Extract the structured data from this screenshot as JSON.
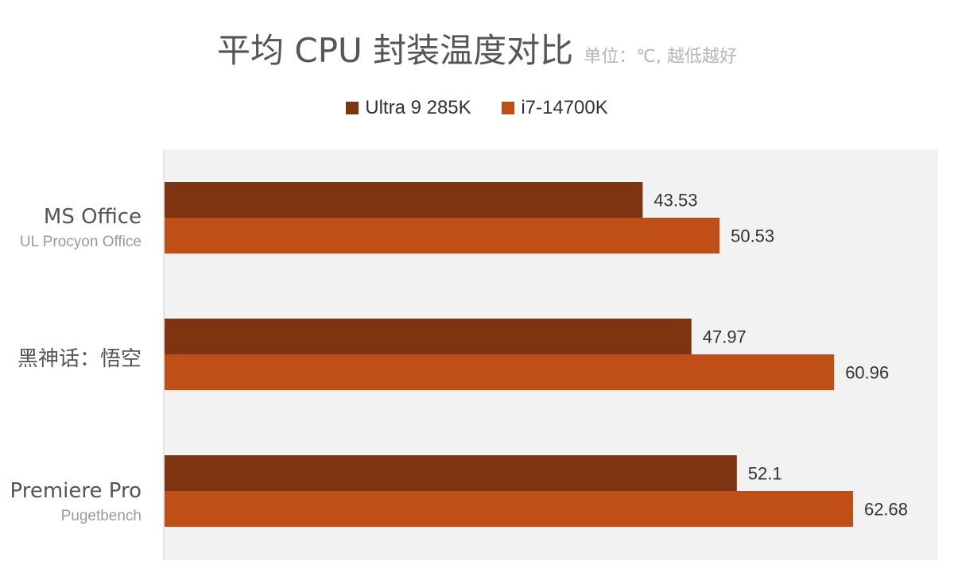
{
  "chart_data": {
    "type": "bar",
    "orientation": "horizontal",
    "title": "平均 CPU 封装温度对比",
    "subtitle": "单位：℃, 越低越好",
    "legend_position": "top",
    "grid": false,
    "xlim": [
      0,
      70.5
    ],
    "categories": [
      {
        "name": "MS Office",
        "sub": "UL Procyon Office"
      },
      {
        "name": "黑神话：悟空",
        "sub": ""
      },
      {
        "name": "Premiere Pro",
        "sub": "Pugetbench"
      }
    ],
    "series": [
      {
        "name": "Ultra 9 285K",
        "color": "#7E3410",
        "values": [
          43.53,
          47.97,
          52.1
        ],
        "labels": [
          "43.53",
          "47.97",
          "52.1"
        ]
      },
      {
        "name": "i7-14700K",
        "color": "#BF4F17",
        "values": [
          50.53,
          60.96,
          62.68
        ],
        "labels": [
          "50.53",
          "60.96",
          "62.68"
        ]
      }
    ],
    "plot_background": "#F2F2F2"
  }
}
